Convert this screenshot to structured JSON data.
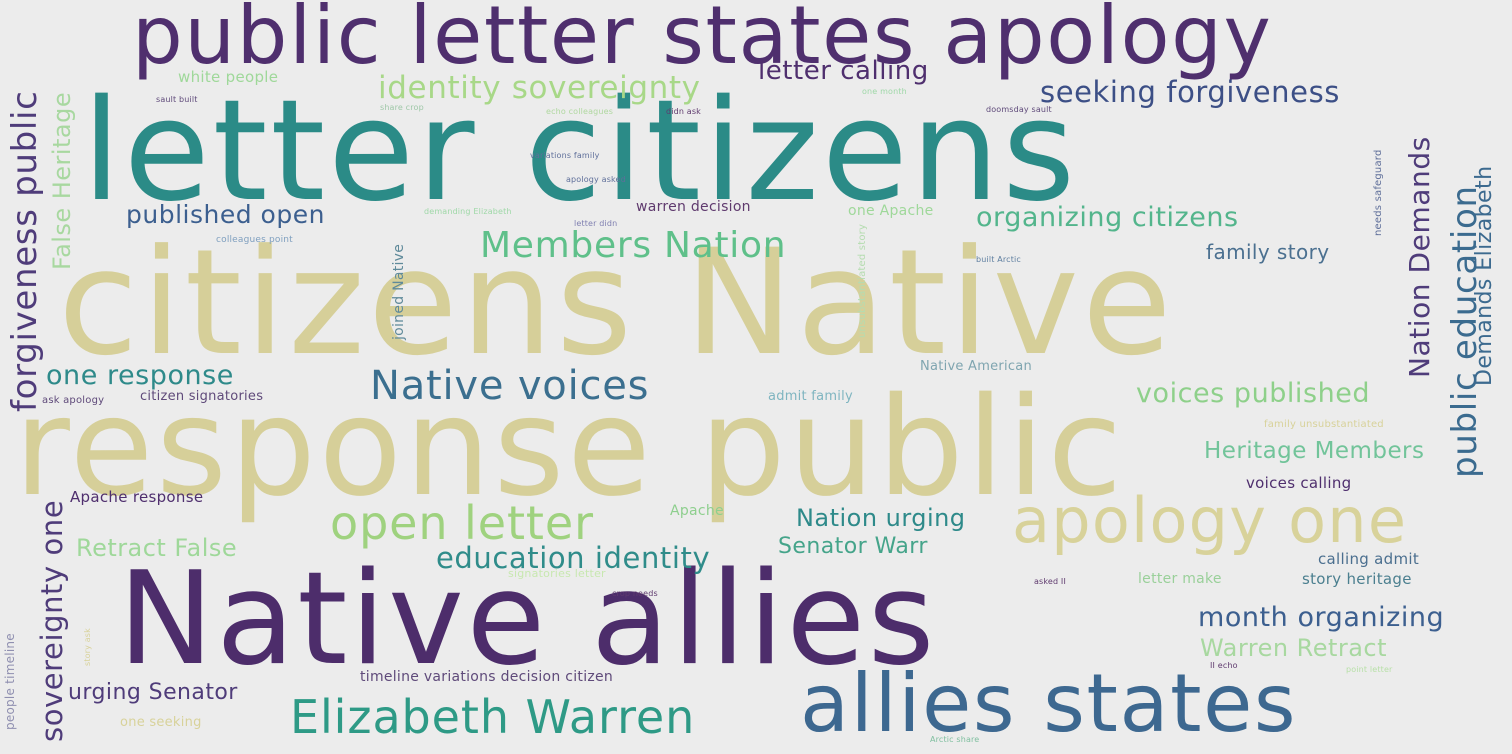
{
  "palette": {
    "background": "#ececec",
    "purple": "#4f2f6e",
    "teal": "#2e8a8a",
    "blue": "#3b6b8f",
    "khaki": "#d8cf9a",
    "green": "#8ecf8e",
    "deepblue": "#3c4f86"
  },
  "words": [
    {
      "text": "public letter states apology",
      "color": "#4f2f6e"
    },
    {
      "text": "letter citizens",
      "color": "#2b8b87"
    },
    {
      "text": "citizens Native",
      "color": "#d6cf99"
    },
    {
      "text": "response public",
      "color": "#d6cf99"
    },
    {
      "text": "Native allies",
      "color": "#4d2d6b"
    },
    {
      "text": "allies states",
      "color": "#3d6890"
    },
    {
      "text": "apology one",
      "color": "#d8d29a"
    },
    {
      "text": "Elizabeth Warren",
      "color": "#2e9a86"
    },
    {
      "text": "open letter",
      "color": "#9fd27f"
    },
    {
      "text": "Native voices",
      "color": "#3b6f8f"
    },
    {
      "text": "Members Nation",
      "color": "#5fc08a"
    },
    {
      "text": "identity sovereignty",
      "color": "#a8d888"
    },
    {
      "text": "seeking forgiveness",
      "color": "#3c4f86"
    },
    {
      "text": "letter calling",
      "color": "#4f2f6e"
    },
    {
      "text": "organizing citizens",
      "color": "#53b58c"
    },
    {
      "text": "published open",
      "color": "#3c5f8f"
    },
    {
      "text": "family story",
      "color": "#4b7090"
    },
    {
      "text": "one response",
      "color": "#2e8a8a"
    },
    {
      "text": "voices published",
      "color": "#8ed08a"
    },
    {
      "text": "Heritage Members",
      "color": "#72c49a"
    },
    {
      "text": "education identity",
      "color": "#2f8c8a"
    },
    {
      "text": "Nation urging",
      "color": "#2e8a8a"
    },
    {
      "text": "Senator Warr",
      "color": "#45a48a"
    },
    {
      "text": "Retract False",
      "color": "#9fd89a"
    },
    {
      "text": "month organizing",
      "color": "#3c5f8f"
    },
    {
      "text": "Warren Retract",
      "color": "#a8d8a0"
    },
    {
      "text": "urging Senator",
      "color": "#4f3c7a"
    },
    {
      "text": "Apache response",
      "color": "#4f2f6e"
    },
    {
      "text": "voices calling",
      "color": "#4f2f6e"
    },
    {
      "text": "calling admit",
      "color": "#4b6f8f"
    },
    {
      "text": "story heritage",
      "color": "#4b7f8f"
    },
    {
      "text": "letter make",
      "color": "#9ad09a"
    },
    {
      "text": "timeline variations decision citizen",
      "color": "#5f4a7a"
    },
    {
      "text": "one seeking",
      "color": "#d8d29a"
    },
    {
      "text": "white people",
      "color": "#9fd89a"
    },
    {
      "text": "one Apache",
      "color": "#9fd89a"
    },
    {
      "text": "Native American",
      "color": "#7fa5b0"
    },
    {
      "text": "admit family",
      "color": "#7fb5c0"
    },
    {
      "text": "citizen signatories",
      "color": "#5f4a7a"
    },
    {
      "text": "ask apology",
      "color": "#5f4a7a"
    },
    {
      "text": "warren decision",
      "color": "#5f3a6e"
    },
    {
      "text": "Apache",
      "color": "#8ecf8e"
    },
    {
      "text": "colleagues point",
      "color": "#7f9fbf"
    },
    {
      "text": "signatories letter",
      "color": "#c8e8b0"
    },
    {
      "text": "family unsubstantiated",
      "color": "#d8d29a"
    },
    {
      "text": "people timeline",
      "color": "#8f8fb0"
    },
    {
      "text": "forgiveness public",
      "color": "#4f3c7a"
    },
    {
      "text": "False Heritage",
      "color": "#a8d8a0"
    },
    {
      "text": "sovereignty one",
      "color": "#4f3c7a"
    },
    {
      "text": "public education",
      "color": "#3b6b8f"
    },
    {
      "text": "Nation Demands",
      "color": "#4f3c7a"
    },
    {
      "text": "Demands Elizabeth",
      "color": "#3c6a8f"
    },
    {
      "text": "joined Native",
      "color": "#5f8a9a"
    },
    {
      "text": "unsubstantiated story",
      "color": "#b5dcb0"
    },
    {
      "text": "needs safeguard",
      "color": "#5f6f9a"
    },
    {
      "text": "sault built",
      "color": "#5f4a7a"
    },
    {
      "text": "share crop",
      "color": "#9fc8a8"
    },
    {
      "text": "echo colleagues",
      "color": "#b0d8a0"
    },
    {
      "text": "didn ask",
      "color": "#5f3a6e"
    },
    {
      "text": "one month",
      "color": "#9fd8a8"
    },
    {
      "text": "doomsday sault",
      "color": "#5f4a7a"
    },
    {
      "text": "variations family",
      "color": "#5f6f9a"
    },
    {
      "text": "apology asked",
      "color": "#5f6f9a"
    },
    {
      "text": "demanding Elizabeth",
      "color": "#9fd8a8"
    },
    {
      "text": "letter didn",
      "color": "#7f7fb0"
    },
    {
      "text": "built Arctic",
      "color": "#5f7fa0"
    },
    {
      "text": "asked II",
      "color": "#5f3a6e"
    },
    {
      "text": "II echo",
      "color": "#5f3a6e"
    },
    {
      "text": "point letter",
      "color": "#b8e0a8"
    },
    {
      "text": "crop needs",
      "color": "#5f3a6e"
    },
    {
      "text": "story ask",
      "color": "#d8d29a"
    },
    {
      "text": "Arctic share",
      "color": "#7fbf9f"
    }
  ]
}
